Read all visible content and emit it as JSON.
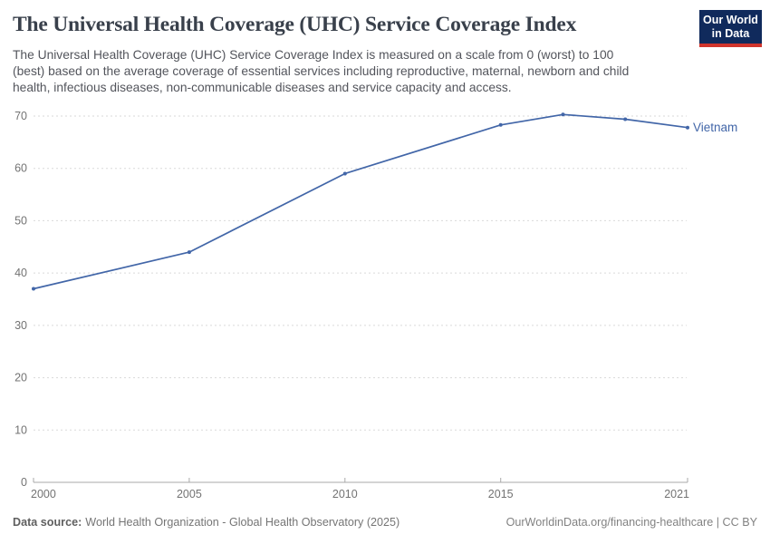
{
  "header": {
    "title": "The Universal Health Coverage (UHC) Service Coverage Index",
    "subtitle": "The Universal Health Coverage (UHC) Service Coverage Index is measured on a scale from 0 (worst) to 100 (best) based on the average coverage of essential services including reproductive, maternal, newborn and child health, infectious diseases, non-communicable diseases and service capacity and access.",
    "logo": {
      "line1": "Our World",
      "line2": "in Data",
      "bg_color": "#102a5c",
      "accent_color": "#d0342c"
    }
  },
  "chart_data": {
    "type": "line",
    "title": "The Universal Health Coverage (UHC) Service Coverage Index",
    "series": [
      {
        "name": "Vietnam",
        "color": "#4266a8",
        "x": [
          2000,
          2005,
          2010,
          2015,
          2017,
          2019,
          2021
        ],
        "values": [
          37,
          44,
          59,
          68.3,
          70.3,
          69.4,
          67.8
        ]
      }
    ],
    "xlim": [
      2000,
      2021
    ],
    "ylim": [
      0,
      70
    ],
    "yticks": [
      0,
      10,
      20,
      30,
      40,
      50,
      60,
      70
    ],
    "xticks": [
      2000,
      2005,
      2010,
      2015,
      2021
    ],
    "xlabel": "",
    "ylabel": "",
    "grid": "horizontal-dashed",
    "legend_position": "end-of-line-label"
  },
  "footer": {
    "source_label": "Data source:",
    "source_text": "World Health Organization - Global Health Observatory (2025)",
    "link_text": "OurWorldinData.org/financing-healthcare | CC BY"
  }
}
